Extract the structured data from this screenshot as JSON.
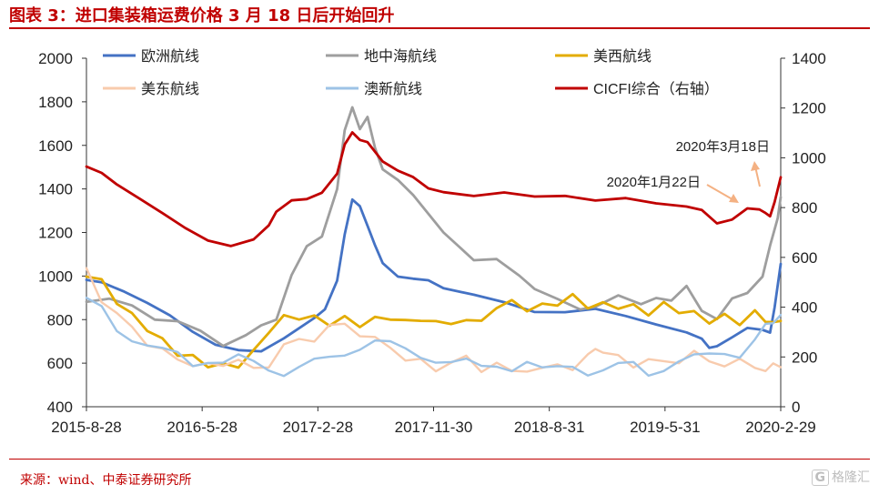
{
  "title": "图表 3：进口集装箱运费价格 3 月 18 日后开始回升",
  "source": "来源：wind、中泰证券研究所",
  "watermark": {
    "logo": "G",
    "text": "格隆汇"
  },
  "chart_data": {
    "type": "line",
    "title": "图表 3：进口集装箱运费价格 3 月 18 日后开始回升",
    "x_labels": [
      "2015-8-28",
      "2016-5-28",
      "2017-2-28",
      "2017-11-30",
      "2018-8-31",
      "2019-5-31",
      "2020-2-29"
    ],
    "x_range": [
      2015.65,
      2020.22
    ],
    "y_left": {
      "ticks": [
        400,
        600,
        800,
        1000,
        1200,
        1400,
        1600,
        1800,
        2000
      ],
      "range": [
        400,
        2000
      ]
    },
    "y_right": {
      "ticks": [
        0,
        200,
        400,
        600,
        800,
        1000,
        1200,
        1400
      ],
      "range": [
        0,
        1400
      ]
    },
    "legend": [
      "欧洲航线",
      "地中海航线",
      "美西航线",
      "美东航线",
      "澳新航线",
      "CICFI综合（右轴）"
    ],
    "series": [
      {
        "name": "欧洲航线",
        "axis": "left",
        "color": "#4472c4",
        "width": 2.8,
        "x": [
          2015.65,
          2015.75,
          2015.9,
          2016.05,
          2016.2,
          2016.35,
          2016.5,
          2016.65,
          2016.8,
          2016.95,
          2017.05,
          2017.15,
          2017.22,
          2017.3,
          2017.35,
          2017.4,
          2017.45,
          2017.5,
          2017.55,
          2017.6,
          2017.7,
          2017.8,
          2017.9,
          2018.0,
          2018.2,
          2018.4,
          2018.6,
          2018.8,
          2019.0,
          2019.2,
          2019.4,
          2019.6,
          2019.7,
          2019.75,
          2019.8,
          2019.9,
          2020.0,
          2020.1,
          2020.15,
          2020.18,
          2020.22
        ],
        "y": [
          1000,
          990,
          930,
          860,
          800,
          740,
          700,
          680,
          660,
          700,
          740,
          800,
          860,
          1000,
          1200,
          1340,
          1300,
          1220,
          1150,
          1080,
          1010,
          980,
          960,
          930,
          920,
          900,
          850,
          830,
          830,
          800,
          780,
          760,
          730,
          670,
          660,
          700,
          760,
          770,
          760,
          860,
          1040
        ]
      },
      {
        "name": "地中海航线",
        "axis": "left",
        "color": "#9e9e9e",
        "width": 2.8,
        "x": [
          2015.65,
          2015.8,
          2015.95,
          2016.1,
          2016.25,
          2016.4,
          2016.55,
          2016.7,
          2016.8,
          2016.9,
          2017.0,
          2017.1,
          2017.2,
          2017.3,
          2017.35,
          2017.4,
          2017.45,
          2017.5,
          2017.55,
          2017.6,
          2017.7,
          2017.8,
          2017.9,
          2018.0,
          2018.1,
          2018.2,
          2018.35,
          2018.5,
          2018.6,
          2018.75,
          2018.9,
          2019.0,
          2019.15,
          2019.3,
          2019.4,
          2019.5,
          2019.6,
          2019.7,
          2019.8,
          2019.9,
          2020.0,
          2020.1,
          2020.15,
          2020.2,
          2020.22
        ],
        "y": [
          900,
          880,
          860,
          820,
          780,
          740,
          700,
          720,
          760,
          820,
          1000,
          1120,
          1200,
          1400,
          1650,
          1790,
          1680,
          1710,
          1600,
          1500,
          1420,
          1380,
          1300,
          1180,
          1140,
          1090,
          1060,
          1000,
          960,
          880,
          840,
          880,
          900,
          860,
          920,
          880,
          940,
          860,
          800,
          880,
          940,
          1000,
          1120,
          1280,
          1370
        ]
      },
      {
        "name": "美西航线",
        "axis": "left",
        "color": "#e3ac00",
        "width": 2.8,
        "x": [
          2015.65,
          2015.75,
          2015.85,
          2015.95,
          2016.05,
          2016.15,
          2016.25,
          2016.35,
          2016.45,
          2016.55,
          2016.65,
          2016.75,
          2016.85,
          2016.95,
          2017.05,
          2017.15,
          2017.25,
          2017.35,
          2017.45,
          2017.55,
          2017.65,
          2017.75,
          2017.85,
          2017.95,
          2018.05,
          2018.15,
          2018.25,
          2018.35,
          2018.45,
          2018.55,
          2018.65,
          2018.75,
          2018.85,
          2018.95,
          2019.05,
          2019.15,
          2019.25,
          2019.35,
          2019.45,
          2019.55,
          2019.65,
          2019.75,
          2019.85,
          2019.95,
          2020.05,
          2020.12,
          2020.17,
          2020.22
        ],
        "y": [
          1000,
          980,
          880,
          820,
          760,
          700,
          650,
          620,
          600,
          580,
          600,
          640,
          760,
          800,
          820,
          800,
          790,
          800,
          780,
          800,
          810,
          790,
          800,
          790,
          780,
          800,
          790,
          860,
          880,
          850,
          860,
          880,
          900,
          870,
          860,
          870,
          850,
          840,
          860,
          850,
          820,
          800,
          810,
          790,
          830,
          800,
          780,
          800
        ]
      },
      {
        "name": "美东航线",
        "axis": "left",
        "color": "#f8cbad",
        "width": 2.4,
        "x": [
          2015.65,
          2015.75,
          2015.85,
          2015.95,
          2016.05,
          2016.15,
          2016.25,
          2016.35,
          2016.45,
          2016.55,
          2016.65,
          2016.75,
          2016.85,
          2016.95,
          2017.05,
          2017.15,
          2017.25,
          2017.35,
          2017.45,
          2017.55,
          2017.65,
          2017.75,
          2017.85,
          2017.95,
          2018.05,
          2018.15,
          2018.25,
          2018.35,
          2018.45,
          2018.55,
          2018.65,
          2018.75,
          2018.85,
          2018.95,
          2019.0,
          2019.05,
          2019.15,
          2019.25,
          2019.35,
          2019.45,
          2019.55,
          2019.65,
          2019.75,
          2019.85,
          2019.95,
          2020.05,
          2020.12,
          2020.17,
          2020.22
        ],
        "y": [
          1020,
          900,
          820,
          760,
          700,
          650,
          620,
          600,
          580,
          600,
          620,
          560,
          600,
          680,
          700,
          720,
          760,
          780,
          740,
          700,
          680,
          620,
          600,
          580,
          600,
          620,
          580,
          590,
          560,
          580,
          560,
          600,
          580,
          620,
          680,
          650,
          620,
          600,
          610,
          600,
          620,
          640,
          610,
          600,
          600,
          590,
          570,
          580,
          600
        ]
      },
      {
        "name": "澳新航线",
        "axis": "left",
        "color": "#9dc3e6",
        "width": 2.4,
        "x": [
          2015.65,
          2015.75,
          2015.85,
          2015.95,
          2016.05,
          2016.15,
          2016.25,
          2016.35,
          2016.45,
          2016.55,
          2016.65,
          2016.75,
          2016.85,
          2016.95,
          2017.05,
          2017.15,
          2017.25,
          2017.35,
          2017.45,
          2017.55,
          2017.65,
          2017.75,
          2017.85,
          2017.95,
          2018.05,
          2018.15,
          2018.25,
          2018.35,
          2018.45,
          2018.55,
          2018.65,
          2018.75,
          2018.85,
          2018.95,
          2019.05,
          2019.15,
          2019.25,
          2019.35,
          2019.45,
          2019.55,
          2019.65,
          2019.75,
          2019.85,
          2019.95,
          2020.05,
          2020.12,
          2020.17,
          2020.22
        ],
        "y": [
          880,
          850,
          760,
          720,
          680,
          650,
          640,
          600,
          620,
          600,
          620,
          600,
          580,
          560,
          580,
          600,
          620,
          650,
          680,
          700,
          680,
          660,
          640,
          620,
          600,
          600,
          580,
          600,
          580,
          600,
          560,
          580,
          600,
          560,
          560,
          580,
          600,
          560,
          580,
          600,
          620,
          640,
          660,
          640,
          700,
          760,
          780,
          840
        ]
      },
      {
        "name": "CICFI综合（右轴）",
        "axis": "right",
        "color": "#c00000",
        "width": 2.8,
        "x": [
          2015.65,
          2015.75,
          2015.85,
          2016.0,
          2016.15,
          2016.3,
          2016.45,
          2016.6,
          2016.75,
          2016.85,
          2016.9,
          2017.0,
          2017.1,
          2017.2,
          2017.3,
          2017.35,
          2017.4,
          2017.45,
          2017.5,
          2017.6,
          2017.7,
          2017.8,
          2017.9,
          2018.0,
          2018.2,
          2018.4,
          2018.6,
          2018.8,
          2019.0,
          2019.2,
          2019.4,
          2019.6,
          2019.7,
          2019.8,
          2019.9,
          2020.0,
          2020.08,
          2020.12,
          2020.15,
          2020.18,
          2020.22
        ],
        "y": [
          960,
          930,
          880,
          820,
          760,
          700,
          650,
          630,
          660,
          720,
          780,
          830,
          840,
          870,
          950,
          1070,
          1120,
          1090,
          1080,
          1000,
          960,
          930,
          880,
          860,
          840,
          850,
          830,
          830,
          810,
          820,
          800,
          790,
          780,
          730,
          750,
          800,
          800,
          790,
          780,
          840,
          940
        ]
      }
    ],
    "annotations": [
      {
        "text": "2020年1月22日",
        "at": [
          2020.06,
          810
        ],
        "axis": "right"
      },
      {
        "text": "2020年3月18日",
        "at": [
          2020.22,
          950
        ],
        "axis": "right"
      }
    ]
  }
}
